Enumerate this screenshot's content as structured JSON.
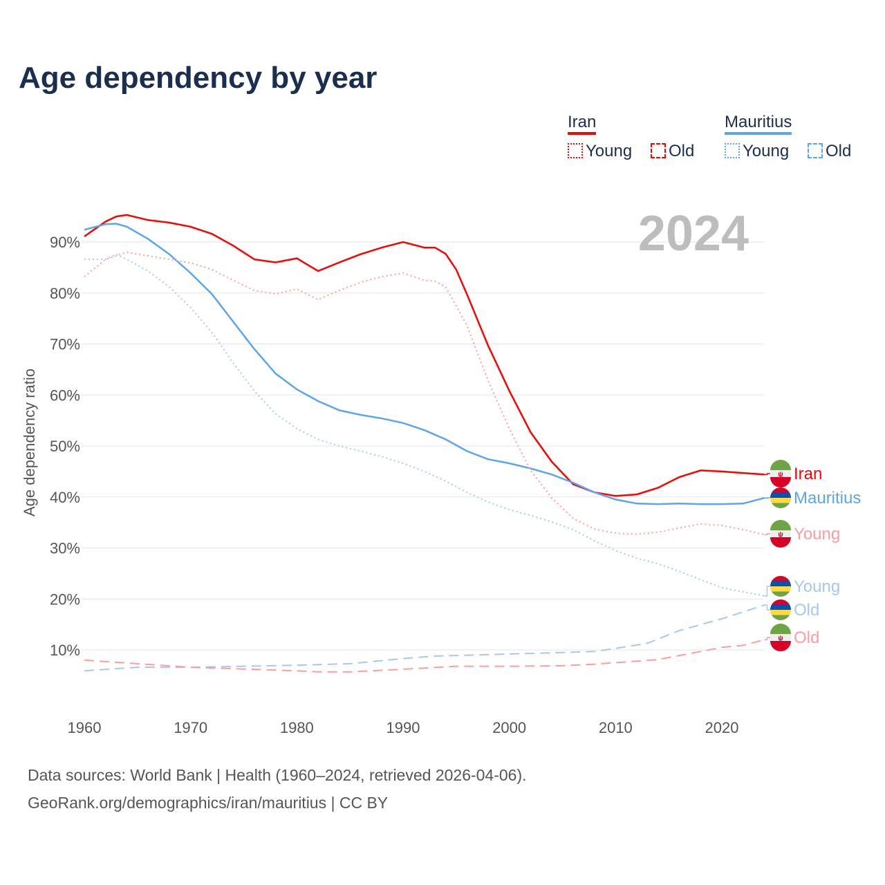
{
  "chart_data": {
    "type": "line",
    "title": "Age dependency by year",
    "ylabel": "Age dependency ratio",
    "xlim": [
      1960,
      2024
    ],
    "ylim": [
      0,
      100
    ],
    "x_ticks": [
      "1960",
      "1970",
      "1980",
      "1990",
      "2000",
      "2010",
      "2020"
    ],
    "y_ticks": [
      "10%",
      "20%",
      "30%",
      "40%",
      "50%",
      "60%",
      "70%",
      "80%",
      "90%"
    ],
    "year_watermark": "2024",
    "legend": {
      "groups": [
        {
          "name": "Iran",
          "items": [
            "Young",
            "Old"
          ]
        },
        {
          "name": "Mauritius",
          "items": [
            "Young",
            "Old"
          ]
        }
      ],
      "placement": "top-right"
    },
    "colors": {
      "iran": "#ff0000",
      "iran_light": "#ff9c9c",
      "mauritius": "#5aa5f0",
      "mauritius_light": "#a6c8f0"
    },
    "series": [
      {
        "name": "Iran",
        "label": "Iran",
        "country": "iran",
        "style": "solid",
        "color": "#ff0000",
        "x": [
          1960,
          1962,
          1963,
          1964,
          1966,
          1968,
          1970,
          1972,
          1974,
          1976,
          1978,
          1980,
          1982,
          1984,
          1986,
          1988,
          1990,
          1992,
          1993,
          1994,
          1995,
          1996,
          1998,
          2000,
          2002,
          2004,
          2006,
          2008,
          2010,
          2012,
          2014,
          2016,
          2018,
          2020,
          2022,
          2024
        ],
        "y": [
          91.1,
          94,
          95,
          95.3,
          94.3,
          93.8,
          93,
          91.6,
          89.3,
          86.6,
          86,
          86.8,
          84.3,
          86,
          87.6,
          88.9,
          90,
          88.9,
          88.9,
          87.7,
          84.6,
          79.8,
          69.7,
          60.8,
          52.7,
          46.9,
          42.5,
          40.9,
          40.2,
          40.5,
          41.8,
          43.9,
          45.2,
          45,
          44.7,
          44.4
        ]
      },
      {
        "name": "Mauritius",
        "label": "Mauritius",
        "country": "mauritius",
        "style": "solid",
        "color": "#5aa5f0",
        "x": [
          1960,
          1962,
          1963,
          1964,
          1966,
          1968,
          1970,
          1972,
          1974,
          1976,
          1978,
          1980,
          1982,
          1984,
          1986,
          1988,
          1990,
          1992,
          1994,
          1996,
          1998,
          2000,
          2002,
          2004,
          2006,
          2008,
          2010,
          2012,
          2014,
          2016,
          2018,
          2020,
          2022,
          2024
        ],
        "y": [
          92.4,
          93.5,
          93.6,
          93,
          90.6,
          87.6,
          83.9,
          79.8,
          74.4,
          69,
          64.2,
          61.1,
          58.8,
          57,
          56.1,
          55.4,
          54.5,
          53.1,
          51.3,
          49,
          47.4,
          46.6,
          45.6,
          44.4,
          42.8,
          40.9,
          39.5,
          38.7,
          38.6,
          38.7,
          38.6,
          38.6,
          38.7,
          39.8
        ]
      },
      {
        "name": "Iran Young",
        "label": "Young",
        "country": "iran",
        "style": "dotted",
        "color": "#ff9c9c",
        "x": [
          1960,
          1962,
          1964,
          1966,
          1968,
          1970,
          1972,
          1974,
          1976,
          1978,
          1980,
          1982,
          1984,
          1986,
          1988,
          1990,
          1992,
          1993,
          1994,
          1996,
          1998,
          2000,
          2002,
          2004,
          2006,
          2008,
          2010,
          2012,
          2014,
          2016,
          2018,
          2020,
          2022,
          2024
        ],
        "y": [
          83.2,
          86.6,
          88,
          87.3,
          86.6,
          85.9,
          84.6,
          82.5,
          80.5,
          79.8,
          80.8,
          78.7,
          80.5,
          82.1,
          83.2,
          83.9,
          82.5,
          82.3,
          81.2,
          73.7,
          62.8,
          53.4,
          45.2,
          39.8,
          35.8,
          33.7,
          32.9,
          32.7,
          33.1,
          33.9,
          34.7,
          34.4,
          33.6,
          32.6
        ]
      },
      {
        "name": "Mauritius Young",
        "label": "Young",
        "country": "mauritius",
        "style": "dotted",
        "color": "#a6c8f0",
        "x": [
          1960,
          1962,
          1963,
          1964,
          1966,
          1968,
          1970,
          1972,
          1974,
          1976,
          1978,
          1980,
          1982,
          1984,
          1986,
          1988,
          1990,
          1992,
          1994,
          1996,
          1998,
          2000,
          2002,
          2004,
          2006,
          2008,
          2010,
          2012,
          2014,
          2016,
          2018,
          2020,
          2022,
          2024
        ],
        "y": [
          86.6,
          86.6,
          87.6,
          86.6,
          84.3,
          81.2,
          77.1,
          72.3,
          66.3,
          60.8,
          56.3,
          53.4,
          51.3,
          50,
          49,
          47.9,
          46.6,
          45,
          43.1,
          40.9,
          39,
          37.5,
          36.4,
          35.1,
          33.6,
          31.4,
          29.5,
          28,
          26.9,
          25.4,
          23.8,
          22.2,
          21.4,
          20.6
        ]
      },
      {
        "name": "Mauritius Old",
        "label": "Old",
        "country": "mauritius",
        "style": "dashed",
        "color": "#a6c8f0",
        "x": [
          1960,
          1965,
          1970,
          1980,
          1985,
          1990,
          1993,
          1995,
          2000,
          2005,
          2008,
          2010,
          2013,
          2016,
          2020,
          2024
        ],
        "y": [
          5.9,
          6.6,
          6.6,
          7,
          7.3,
          8.3,
          8.8,
          8.9,
          9.2,
          9.5,
          9.7,
          10.3,
          11.3,
          13.8,
          16.1,
          18.8
        ]
      },
      {
        "name": "Iran Old",
        "label": "Old",
        "country": "iran",
        "style": "dashed",
        "color": "#ff9c9c",
        "x": [
          1960,
          1970,
          1980,
          1982,
          1985,
          1990,
          1995,
          2000,
          2005,
          2008,
          2012,
          2014,
          2018,
          2020,
          2022,
          2024
        ],
        "y": [
          8,
          6.6,
          5.9,
          5.7,
          5.7,
          6.2,
          6.8,
          6.8,
          6.9,
          7.2,
          7.8,
          8.1,
          9.7,
          10.5,
          10.9,
          12
        ]
      }
    ]
  },
  "footer": {
    "line1": "Data sources: World Bank | Health (1960–2024, retrieved 2026-04-06).",
    "line2": "GeoRank.org/demographics/iran/mauritius | CC BY"
  }
}
